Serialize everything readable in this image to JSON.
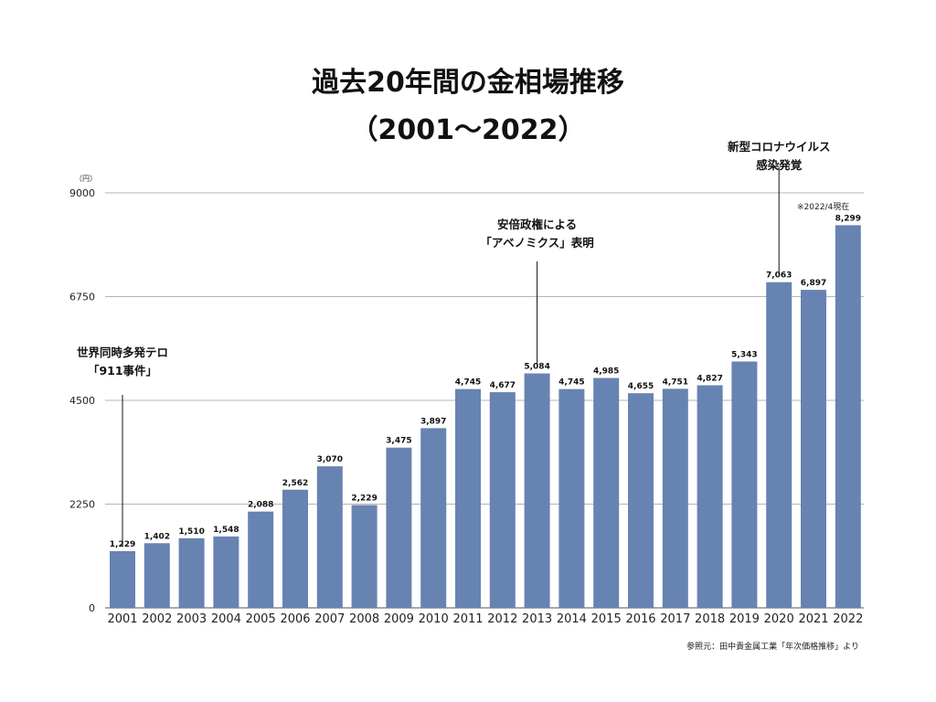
{
  "title_line1": "過去20年間の金相場推移",
  "title_line2": "（2001〜2022）",
  "source": "参照元：田中貴金属工業「年次価格推移」より",
  "chart_data": {
    "type": "bar",
    "unit_label": "（円）",
    "categories": [
      "2001",
      "2002",
      "2003",
      "2004",
      "2005",
      "2006",
      "2007",
      "2008",
      "2009",
      "2010",
      "2011",
      "2012",
      "2013",
      "2014",
      "2015",
      "2016",
      "2017",
      "2018",
      "2019",
      "2020",
      "2021",
      "2022"
    ],
    "values": [
      1229,
      1402,
      1510,
      1548,
      2088,
      2562,
      3070,
      2229,
      3475,
      3897,
      4745,
      4677,
      5084,
      4745,
      4985,
      4655,
      4751,
      4827,
      5343,
      7063,
      6897,
      8299
    ],
    "value_labels": [
      "1,229",
      "1,402",
      "1,510",
      "1,548",
      "2,088",
      "2,562",
      "3,070",
      "2,229",
      "3,475",
      "3,897",
      "4,745",
      "4,677",
      "5,084",
      "4,745",
      "4,985",
      "4,655",
      "4,751",
      "4,827",
      "5,343",
      "7,063",
      "6,897",
      "8,299"
    ],
    "ylim": [
      0,
      9000
    ],
    "yticks": [
      0,
      2250,
      4500,
      6750,
      9000
    ],
    "ytick_labels": [
      "0",
      "2250",
      "4500",
      "6750",
      "9000"
    ],
    "grid": true,
    "bar_color": "#6783b1",
    "annotations": [
      {
        "year": "2001",
        "lines": [
          "世界同時多発テロ",
          "「911事件」"
        ]
      },
      {
        "year": "2013",
        "lines": [
          "安倍政権による",
          "「アベノミクス」表明"
        ]
      },
      {
        "year": "2020",
        "lines": [
          "新型コロナウイルス",
          "感染発覚"
        ]
      }
    ],
    "note": "※2022/4現在"
  }
}
